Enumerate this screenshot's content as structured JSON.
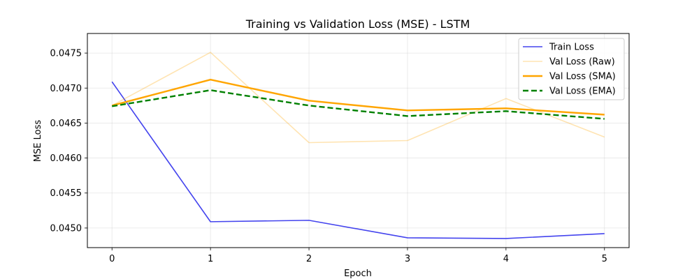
{
  "chart_data": {
    "type": "line",
    "title": "Training vs Validation Loss (MSE) - LSTM",
    "xlabel": "Epoch",
    "ylabel": "MSE Loss",
    "x": [
      0,
      1,
      2,
      3,
      4,
      5
    ],
    "xlim": [
      -0.25,
      5.25
    ],
    "ylim": [
      0.04472,
      0.04778
    ],
    "xticks": [
      0,
      1,
      2,
      3,
      4,
      5
    ],
    "yticks": [
      0.045,
      0.0455,
      0.046,
      0.0465,
      0.047,
      0.0475
    ],
    "ytick_labels": [
      "0.0450",
      "0.0455",
      "0.0460",
      "0.0465",
      "0.0470",
      "0.0475"
    ],
    "grid": true,
    "legend_position": "top-right",
    "series": [
      {
        "name": "Train Loss",
        "values": [
          0.04709,
          0.04509,
          0.04511,
          0.04486,
          0.04485,
          0.04492
        ],
        "color": "#4444ee",
        "style": "solid",
        "opacity": 1,
        "width": 1.6
      },
      {
        "name": "Val Loss (Raw)",
        "values": [
          0.04675,
          0.04751,
          0.04622,
          0.04625,
          0.04685,
          0.0463
        ],
        "color": "#ffa500",
        "style": "solid",
        "opacity": 0.3,
        "width": 1.6
      },
      {
        "name": "Val Loss (SMA)",
        "values": [
          0.04675,
          0.04712,
          0.04682,
          0.04668,
          0.04671,
          0.04662
        ],
        "color": "#ffa500",
        "style": "solid",
        "opacity": 1,
        "width": 2.4
      },
      {
        "name": "Val Loss (EMA)",
        "values": [
          0.04674,
          0.04697,
          0.04675,
          0.0466,
          0.04667,
          0.04656
        ],
        "color": "#008000",
        "style": "dashed",
        "opacity": 1,
        "width": 2.4
      }
    ]
  }
}
